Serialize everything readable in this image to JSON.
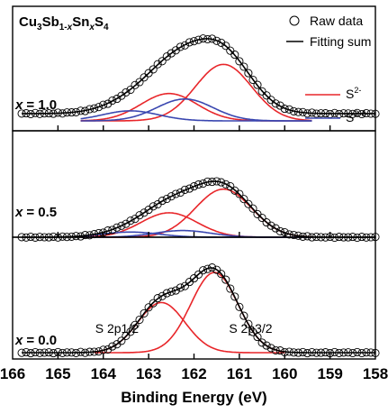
{
  "chart_data": {
    "type": "line",
    "title": "",
    "formula": {
      "parts": [
        "Cu",
        "3",
        "Sb",
        "1-",
        "x",
        "Sn",
        "x",
        "S",
        "4"
      ]
    },
    "xlabel": "Binding Energy (eV)",
    "ylabel": "",
    "xlim": [
      166,
      158
    ],
    "xreversed": true,
    "xticks": [
      166,
      165,
      164,
      163,
      162,
      161,
      160,
      159,
      158
    ],
    "xtick_labels": [
      "166",
      "165",
      "164",
      "163",
      "162",
      "161",
      "160",
      "159",
      "158"
    ],
    "inner_ticks": [
      165,
      164,
      163,
      162,
      161,
      160,
      159
    ],
    "legend": {
      "placement": "top-right",
      "entries": [
        {
          "label": "Raw data",
          "marker": "open-circle",
          "color": "#000000"
        },
        {
          "label": "Fitting sum",
          "marker": "line",
          "color": "#000000"
        },
        {
          "label": "S",
          "sup": "2-",
          "marker": "line",
          "color": "#e8262a"
        },
        {
          "label": "S",
          "sup": "2-δ",
          "marker": "line",
          "color": "#3a47b0"
        }
      ]
    },
    "colors": {
      "raw": "#000000",
      "fit": "#000000",
      "s2": "#e8262a",
      "s2d": "#3a47b0"
    },
    "panels": [
      {
        "label": "x = 1.0",
        "label_prefix": "x",
        "label_value": "= 1.0",
        "baseline": 0.08,
        "raw_range": [
          165.8,
          158.0
        ],
        "components": [
          {
            "species": "S2-",
            "color": "#e8262a",
            "range": [
              164.5,
              159.4
            ],
            "center": 161.35,
            "height": 0.62,
            "width": 0.62
          },
          {
            "species": "S2-",
            "color": "#e8262a",
            "range": [
              164.5,
              159.4
            ],
            "center": 162.55,
            "height": 0.3,
            "width": 0.62
          },
          {
            "species": "S2-δ",
            "color": "#3a47b0",
            "range": [
              164.5,
              159.4
            ],
            "center": 162.2,
            "height": 0.24,
            "width": 0.62
          },
          {
            "species": "S2-δ",
            "color": "#3a47b0",
            "range": [
              164.5,
              159.4
            ],
            "center": 163.4,
            "height": 0.11,
            "width": 0.62
          }
        ]
      },
      {
        "label": "x = 0.5",
        "label_prefix": "x",
        "label_value": "= 0.5",
        "baseline": 0.0,
        "raw_range": [
          165.8,
          158.0
        ],
        "components": [
          {
            "species": "S2-",
            "color": "#e8262a",
            "range": [
              164.5,
              159.4
            ],
            "center": 161.35,
            "height": 0.65,
            "width": 0.62
          },
          {
            "species": "S2-",
            "color": "#e8262a",
            "range": [
              164.5,
              159.4
            ],
            "center": 162.55,
            "height": 0.33,
            "width": 0.62
          },
          {
            "species": "S2-δ",
            "color": "#3a47b0",
            "range": [
              164.5,
              159.4
            ],
            "center": 162.25,
            "height": 0.09,
            "width": 0.62
          },
          {
            "species": "S2-δ",
            "color": "#3a47b0",
            "range": [
              164.5,
              159.4
            ],
            "center": 163.4,
            "height": 0.07,
            "width": 0.62
          }
        ]
      },
      {
        "label": "x = 0.0",
        "label_prefix": "x",
        "label_value": "= 0.0",
        "baseline": 0.0,
        "raw_range": [
          165.8,
          158.0
        ],
        "components": [
          {
            "species": "S2-",
            "color": "#e8262a",
            "range": [
              164.2,
              160.0
            ],
            "center": 161.55,
            "height": 0.88,
            "width": 0.52
          },
          {
            "species": "S2-",
            "color": "#e8262a",
            "range": [
              164.2,
              160.0
            ],
            "center": 162.72,
            "height": 0.55,
            "width": 0.52
          }
        ],
        "annotations": [
          {
            "text": "S 2p1/2",
            "x": 163.7,
            "anchor": "middle"
          },
          {
            "text": "S 2p3/2",
            "x": 160.75,
            "anchor": "middle"
          }
        ]
      }
    ]
  }
}
